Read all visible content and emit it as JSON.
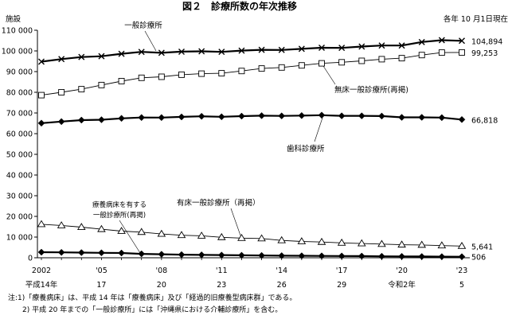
{
  "chart_data": {
    "type": "line",
    "title": "図２　診療所数の年次推移",
    "subtitle": "各年 10 月1日現在",
    "ylabel": "施設",
    "ylim": [
      0,
      110000
    ],
    "ytick_step": 10000,
    "ytick_labels": [
      "0",
      "10 000",
      "20 000",
      "30 000",
      "40 000",
      "50 000",
      "60 000",
      "70 000",
      "80 000",
      "90 000",
      "100 000",
      "110 000"
    ],
    "x": [
      2002,
      2003,
      2004,
      2005,
      2006,
      2007,
      2008,
      2009,
      2010,
      2011,
      2012,
      2013,
      2014,
      2015,
      2016,
      2017,
      2018,
      2019,
      2020,
      2021,
      2022,
      2023
    ],
    "xtick_labels": [
      {
        "year": 2002,
        "top": "2002",
        "bottom": "平成14年"
      },
      {
        "year": 2005,
        "top": "'05",
        "bottom": "17"
      },
      {
        "year": 2008,
        "top": "'08",
        "bottom": "20"
      },
      {
        "year": 2011,
        "top": "'11",
        "bottom": "23"
      },
      {
        "year": 2014,
        "top": "'14",
        "bottom": "26"
      },
      {
        "year": 2017,
        "top": "'17",
        "bottom": "29"
      },
      {
        "year": 2020,
        "top": "'20",
        "bottom": "令和2年"
      },
      {
        "year": 2023,
        "top": "'23",
        "bottom": "5"
      }
    ],
    "series": [
      {
        "name": "一般診療所",
        "marker": "x",
        "end_label": "104,894",
        "values": [
          94819,
          96050,
          97051,
          97442,
          98609,
          99532,
          99083,
          99635,
          99824,
          99547,
          100152,
          100528,
          100461,
          100995,
          101529,
          101471,
          102105,
          102616,
          102612,
          104292,
          105182,
          104894
        ]
      },
      {
        "name": "無床一般診療所(再掲)",
        "marker": "square",
        "end_label": "99,253",
        "values": [
          78620,
          80000,
          81500,
          83500,
          85400,
          87000,
          87500,
          88500,
          89000,
          89200,
          90300,
          91500,
          92000,
          93000,
          94000,
          94500,
          95200,
          96000,
          96500,
          98000,
          99200,
          99253
        ]
      },
      {
        "name": "歯科診療所",
        "marker": "diamond",
        "end_label": "66,818",
        "values": [
          65073,
          65828,
          66557,
          66732,
          67392,
          67798,
          67779,
          68097,
          68384,
          68156,
          68474,
          68701,
          68592,
          68737,
          68940,
          68609,
          68613,
          68500,
          67874,
          67899,
          67755,
          66818
        ]
      },
      {
        "name": "有床一般診療所（再掲）",
        "marker": "triangle",
        "end_label": "5,641",
        "values": [
          16178,
          15600,
          14800,
          13800,
          12900,
          12400,
          11500,
          10900,
          10600,
          9900,
          9500,
          9300,
          8400,
          7900,
          7600,
          7200,
          6900,
          6600,
          6300,
          6200,
          5900,
          5641
        ]
      },
      {
        "name": "療養病床を有する一般診療所(再掲)",
        "marker": "diamond",
        "end_label": "506",
        "values": [
          2700,
          2600,
          2500,
          2400,
          2300,
          1900,
          1700,
          1500,
          1400,
          1300,
          1200,
          1100,
          1000,
          950,
          900,
          850,
          800,
          700,
          650,
          600,
          550,
          506
        ]
      }
    ],
    "annotations": {
      "general": "一般診療所",
      "no_bed": "無床一般診療所(再掲)",
      "dental": "歯科診療所",
      "with_bed": "有床一般診療所（再掲）",
      "ltc_line1": "療養病床を有する",
      "ltc_line2": "一般診療所(再掲)"
    }
  },
  "notes": [
    "注:1)「療養病床」は、平成 14 年は「療養病床」及び「経過的旧療養型病床群」である。",
    "　　2) 平成 20 年までの「一般診療所」には「沖縄県における介輔診療所」を含む。"
  ]
}
